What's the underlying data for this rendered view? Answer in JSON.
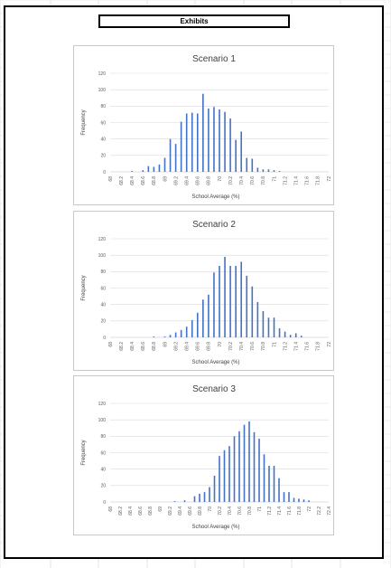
{
  "header": {
    "title": "Exhibits"
  },
  "colors": {
    "bar": "#4472c4",
    "gridline": "#d9d9d9",
    "axis": "#bfbfbf"
  },
  "chart_data": [
    {
      "type": "bar",
      "title": "Scenario 1",
      "xlabel": "School Average (%)",
      "ylabel": "Frequency",
      "ylim": [
        0,
        120
      ],
      "yticks": [
        0,
        20,
        40,
        60,
        80,
        100,
        120
      ],
      "xlim": [
        68,
        72
      ],
      "xticks": [
        "68",
        "68.2",
        "68.4",
        "68.6",
        "68.8",
        "69",
        "69.2",
        "69.4",
        "69.6",
        "69.8",
        "70",
        "70.2",
        "70.4",
        "70.6",
        "70.8",
        "71",
        "71.2",
        "71.4",
        "71.6",
        "71.8",
        "72"
      ],
      "grid": true,
      "x": [
        68.4,
        68.6,
        68.7,
        68.8,
        68.9,
        69.0,
        69.1,
        69.2,
        69.3,
        69.4,
        69.5,
        69.6,
        69.7,
        69.8,
        69.9,
        70.0,
        70.1,
        70.2,
        70.3,
        70.4,
        70.5,
        70.6,
        70.7,
        70.8,
        70.9,
        71.0,
        71.1
      ],
      "values": [
        1,
        2,
        7,
        6,
        9,
        17,
        40,
        34,
        61,
        71,
        72,
        71,
        95,
        77,
        79,
        76,
        73,
        65,
        39,
        49,
        17,
        16,
        5,
        3,
        3,
        2,
        1
      ]
    },
    {
      "type": "bar",
      "title": "Scenario 2",
      "xlabel": "School Average (%)",
      "ylabel": "Frequency",
      "ylim": [
        0,
        120
      ],
      "yticks": [
        0,
        20,
        40,
        60,
        80,
        100,
        120
      ],
      "xlim": [
        68,
        72
      ],
      "xticks": [
        "68",
        "68.2",
        "68.4",
        "68.6",
        "68.8",
        "69",
        "69.2",
        "69.4",
        "69.6",
        "69.8",
        "70",
        "70.2",
        "70.4",
        "70.6",
        "70.8",
        "71",
        "71.2",
        "71.4",
        "71.6",
        "71.8",
        "72"
      ],
      "grid": true,
      "x": [
        68.8,
        69.0,
        69.1,
        69.2,
        69.3,
        69.4,
        69.5,
        69.6,
        69.7,
        69.8,
        69.9,
        70.0,
        70.1,
        70.2,
        70.3,
        70.4,
        70.5,
        70.6,
        70.7,
        70.8,
        70.9,
        71.0,
        71.1,
        71.2,
        71.3,
        71.4,
        71.5
      ],
      "values": [
        1,
        1,
        3,
        6,
        9,
        13,
        21,
        30,
        46,
        52,
        79,
        87,
        98,
        87,
        87,
        92,
        75,
        62,
        43,
        32,
        24,
        24,
        11,
        7,
        3,
        5,
        2
      ]
    },
    {
      "type": "bar",
      "title": "Scenario 3",
      "xlabel": "School Average (%)",
      "ylabel": "Frequency",
      "ylim": [
        0,
        120
      ],
      "yticks": [
        0,
        20,
        40,
        60,
        80,
        100,
        120
      ],
      "xlim": [
        68,
        72.4
      ],
      "xticks": [
        "68",
        "68.2",
        "68.4",
        "68.6",
        "68.8",
        "69",
        "69.2",
        "69.4",
        "69.6",
        "69.8",
        "70",
        "70.2",
        "70.4",
        "70.6",
        "70.8",
        "71",
        "71.2",
        "71.4",
        "71.6",
        "71.8",
        "72",
        "72.2",
        "72.4"
      ],
      "grid": true,
      "x": [
        69.3,
        69.5,
        69.7,
        69.8,
        69.9,
        70.0,
        70.1,
        70.2,
        70.3,
        70.4,
        70.5,
        70.6,
        70.7,
        70.8,
        70.9,
        71.0,
        71.1,
        71.2,
        71.3,
        71.4,
        71.5,
        71.6,
        71.7,
        71.8,
        71.9,
        72.0
      ],
      "values": [
        1,
        2,
        7,
        10,
        12,
        18,
        32,
        56,
        63,
        68,
        80,
        86,
        94,
        98,
        85,
        77,
        58,
        44,
        44,
        29,
        12,
        12,
        5,
        4,
        3,
        2
      ]
    }
  ]
}
